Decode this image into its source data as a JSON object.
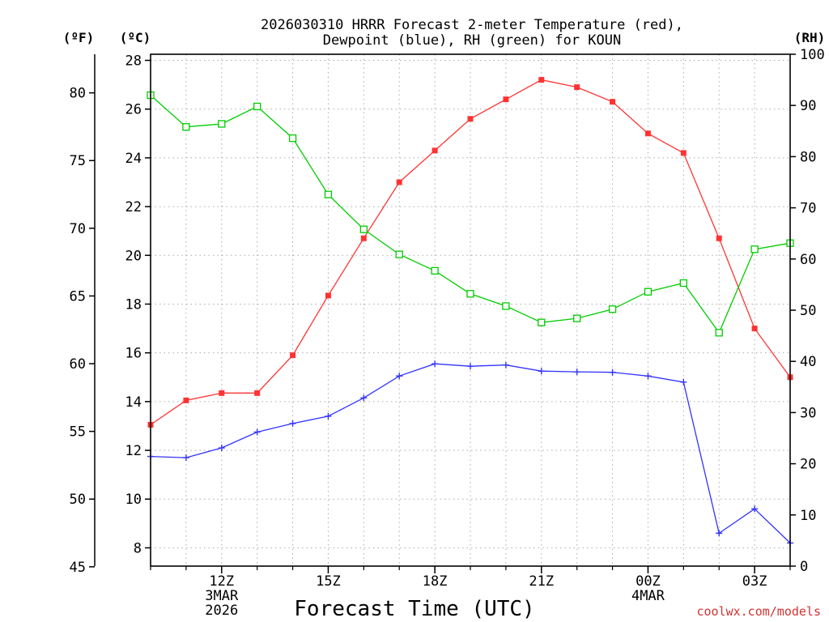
{
  "chart_data": {
    "type": "line",
    "title_line1": "2026030310 HRRR Forecast 2-meter Temperature (red),",
    "title_line2": "Dewpoint (blue), RH (green) for KOUN",
    "xlabel": "Forecast Time (UTC)",
    "left_outer_label": "(ºF)",
    "left_inner_label": "(ºC)",
    "right_label": "(RH)",
    "credit": "coolwx.com/models",
    "x_hours": [
      10,
      11,
      12,
      13,
      14,
      15,
      16,
      17,
      18,
      19,
      20,
      21,
      22,
      23,
      24,
      25,
      26,
      27,
      28
    ],
    "x_range": [
      10,
      28
    ],
    "x_ticks": [
      {
        "hour": 12,
        "lines": [
          "12Z",
          "3MAR",
          "2026"
        ]
      },
      {
        "hour": 15,
        "lines": [
          "15Z"
        ]
      },
      {
        "hour": 18,
        "lines": [
          "18Z"
        ]
      },
      {
        "hour": 21,
        "lines": [
          "21Z"
        ]
      },
      {
        "hour": 24,
        "lines": [
          "00Z",
          "4MAR"
        ]
      },
      {
        "hour": 27,
        "lines": [
          "03Z"
        ]
      }
    ],
    "celsius_axis": {
      "range": [
        7.25,
        28.25
      ],
      "ticks": [
        "8",
        "10",
        "12",
        "14",
        "16",
        "18",
        "20",
        "22",
        "24",
        "26",
        "28"
      ]
    },
    "fahrenheit_axis": {
      "ticks": [
        "45",
        "50",
        "55",
        "60",
        "65",
        "70",
        "75",
        "80"
      ]
    },
    "rh_axis": {
      "range": [
        0,
        100
      ],
      "ticks": [
        "0",
        "10",
        "20",
        "30",
        "40",
        "50",
        "60",
        "70",
        "80",
        "90",
        "100"
      ]
    },
    "series": [
      {
        "name": "Temperature",
        "unit": "C",
        "color": "#ff3333",
        "marker": "filled-square",
        "values": [
          13.05,
          14.05,
          14.35,
          14.35,
          15.9,
          18.35,
          20.7,
          23.0,
          24.3,
          25.6,
          26.4,
          27.2,
          26.9,
          26.3,
          25.0,
          24.2,
          20.7,
          17.0,
          15.0
        ]
      },
      {
        "name": "Dewpoint",
        "unit": "C",
        "color": "#3333ff",
        "marker": "plus",
        "values": [
          11.75,
          11.7,
          12.1,
          12.75,
          13.1,
          13.4,
          14.15,
          15.05,
          15.55,
          15.45,
          15.5,
          15.25,
          15.22,
          15.2,
          15.05,
          14.8,
          8.6,
          9.6,
          8.2
        ]
      },
      {
        "name": "RH",
        "unit": "%",
        "color": "#00cc00",
        "marker": "open-square",
        "values": [
          92.0,
          85.8,
          86.4,
          89.8,
          83.6,
          72.6,
          65.8,
          60.9,
          57.7,
          53.2,
          50.8,
          47.6,
          48.4,
          50.2,
          53.6,
          55.3,
          45.6,
          61.9,
          63.1
        ]
      }
    ]
  }
}
